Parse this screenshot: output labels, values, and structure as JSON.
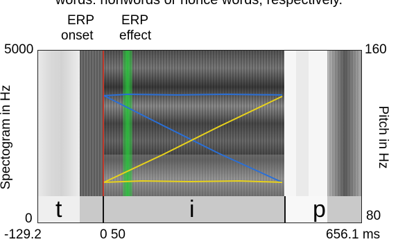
{
  "caption_fragment": "words: nonwords or nonce words, respectively.",
  "markers": {
    "erp_onset": [
      "ERP",
      "onset"
    ],
    "erp_effect": [
      "ERP",
      "effect"
    ]
  },
  "axes": {
    "left_title": "Spectogram in Hz",
    "left_top": "5000",
    "left_bottom": "0",
    "right_title": "Pitch in Hz",
    "right_top": "160",
    "right_bottom": "80",
    "x_start": "-129.2",
    "x_zero_fifty": "0 50",
    "x_end": "656.1 ms"
  },
  "segments": [
    "t",
    "i",
    "p"
  ],
  "colors": {
    "onset_line": "#c0392b",
    "effect_band": "#27c93a",
    "pitch_blue": "#2a6fd6",
    "pitch_yellow": "#e8d21c",
    "segment_tier": "#c9c9c9"
  },
  "icons": [
    "spectrogram-image"
  ]
}
